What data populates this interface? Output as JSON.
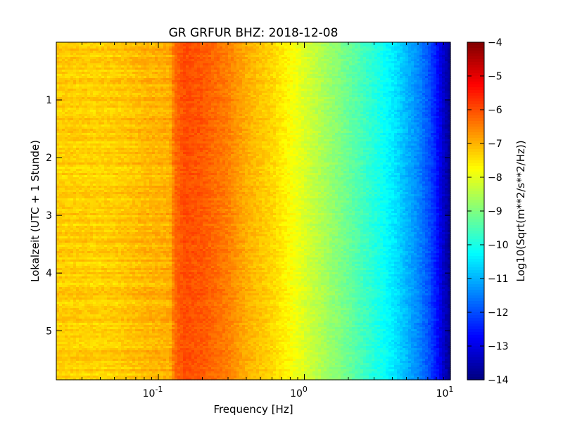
{
  "chart_data": {
    "type": "heatmap",
    "title": "GR GRFUR BHZ: 2018-12-08",
    "xlabel": "Frequency [Hz]",
    "ylabel": "Lokalzeit (UTC + 1 Stunde)",
    "x_scale": "log",
    "xlim": [
      0.02,
      10
    ],
    "ylim": [
      5.85,
      0
    ],
    "x_ticks": [
      {
        "value": 0.1,
        "base": "10",
        "exp": "-1"
      },
      {
        "value": 1,
        "base": "10",
        "exp": "0"
      },
      {
        "value": 10,
        "base": "10",
        "exp": "1"
      }
    ],
    "y_ticks": [
      {
        "value": 1,
        "label": "1"
      },
      {
        "value": 2,
        "label": "2"
      },
      {
        "value": 3,
        "label": "3"
      },
      {
        "value": 4,
        "label": "4"
      },
      {
        "value": 5,
        "label": "5"
      }
    ],
    "colorbar": {
      "label": "Log10(Sqrt(m**2/s**2/Hz))",
      "range": [
        -14,
        -4
      ],
      "colormap": "jet",
      "ticks": [
        {
          "value": -4,
          "label": "−4"
        },
        {
          "value": -5,
          "label": "−5"
        },
        {
          "value": -6,
          "label": "−6"
        },
        {
          "value": -7,
          "label": "−7"
        },
        {
          "value": -8,
          "label": "−8"
        },
        {
          "value": -9,
          "label": "−9"
        },
        {
          "value": -10,
          "label": "−10"
        },
        {
          "value": -11,
          "label": "−11"
        },
        {
          "value": -12,
          "label": "−12"
        },
        {
          "value": -13,
          "label": "−13"
        },
        {
          "value": -14,
          "label": "−14"
        }
      ]
    },
    "frequency_profile": {
      "frequency_hz": [
        0.02,
        0.04,
        0.06,
        0.08,
        0.1,
        0.12,
        0.13,
        0.15,
        0.2,
        0.3,
        0.4,
        0.6,
        0.8,
        1.0,
        1.5,
        2.0,
        3.0,
        4.0,
        5.0,
        6.0,
        7.0,
        8.0,
        9.0,
        10.0
      ],
      "value_log10": [
        -7.25,
        -7.3,
        -7.2,
        -7.05,
        -7.0,
        -6.95,
        -6.3,
        -6.0,
        -6.1,
        -6.5,
        -6.95,
        -7.35,
        -7.75,
        -8.1,
        -8.75,
        -9.2,
        -9.9,
        -10.4,
        -10.95,
        -11.4,
        -11.9,
        -12.5,
        -13.3,
        -13.8
      ]
    }
  }
}
